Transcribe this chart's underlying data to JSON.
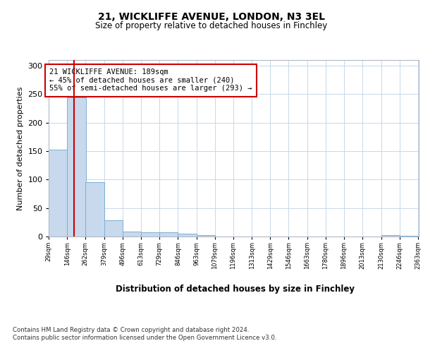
{
  "title1": "21, WICKLIFFE AVENUE, LONDON, N3 3EL",
  "title2": "Size of property relative to detached houses in Finchley",
  "xlabel": "Distribution of detached houses by size in Finchley",
  "ylabel": "Number of detached properties",
  "bar_left_edges": [
    29,
    146,
    262,
    379,
    496,
    613,
    729,
    846,
    963,
    1079,
    1196,
    1313,
    1429,
    1546,
    1663,
    1780,
    1896,
    2013,
    2130,
    2246
  ],
  "bar_heights": [
    152,
    244,
    95,
    28,
    9,
    8,
    7,
    5,
    2,
    0,
    0,
    0,
    0,
    0,
    0,
    0,
    0,
    0,
    2,
    1
  ],
  "bin_width": 117,
  "bar_color": "#c8d9ed",
  "bar_edge_color": "#7aafd4",
  "x_tick_labels": [
    "29sqm",
    "146sqm",
    "262sqm",
    "379sqm",
    "496sqm",
    "613sqm",
    "729sqm",
    "846sqm",
    "963sqm",
    "1079sqm",
    "1196sqm",
    "1313sqm",
    "1429sqm",
    "1546sqm",
    "1663sqm",
    "1780sqm",
    "1896sqm",
    "2013sqm",
    "2130sqm",
    "2246sqm",
    "2363sqm"
  ],
  "vline_x": 189,
  "vline_color": "#cc0000",
  "annotation_text": "21 WICKLIFFE AVENUE: 189sqm\n← 45% of detached houses are smaller (240)\n55% of semi-detached houses are larger (293) →",
  "annotation_box_color": "#ffffff",
  "annotation_box_edge_color": "#cc0000",
  "ylim": [
    0,
    310
  ],
  "yticks": [
    0,
    50,
    100,
    150,
    200,
    250,
    300
  ],
  "footer_line1": "Contains HM Land Registry data © Crown copyright and database right 2024.",
  "footer_line2": "Contains public sector information licensed under the Open Government Licence v3.0.",
  "background_color": "#ffffff",
  "grid_color": "#c8d8ea"
}
